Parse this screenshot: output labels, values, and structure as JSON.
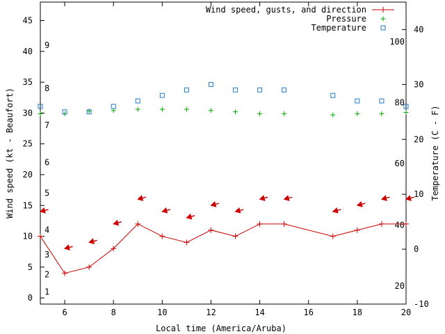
{
  "chart_data": {
    "type": "line",
    "xlabel": "Local time (America/Aruba)",
    "ylabel_left": "Wind speed (kt - Beaufort)",
    "ylabel_right": "Temperature (C - F)",
    "xlim": [
      5,
      20
    ],
    "ylim_left": [
      -1,
      48
    ],
    "ylim_right_c": [
      -10,
      45
    ],
    "x_ticks": [
      6,
      8,
      10,
      12,
      14,
      16,
      18,
      20
    ],
    "y_ticks_left": [
      0,
      5,
      10,
      15,
      20,
      25,
      30,
      35,
      40,
      45
    ],
    "y_ticks_right_c": [
      -10,
      0,
      10,
      20,
      30,
      40
    ],
    "beaufort_labels": [
      {
        "label": "1",
        "kt": 1
      },
      {
        "label": "2",
        "kt": 3.8
      },
      {
        "label": "3",
        "kt": 7
      },
      {
        "label": "4",
        "kt": 11
      },
      {
        "label": "5",
        "kt": 17
      },
      {
        "label": "6",
        "kt": 22
      },
      {
        "label": "7",
        "kt": 28
      },
      {
        "label": "8",
        "kt": 34
      },
      {
        "label": "9",
        "kt": 41
      }
    ],
    "fahrenheit_labels": [
      {
        "label": "20",
        "c": -6.7
      },
      {
        "label": "40",
        "c": 4.4
      },
      {
        "label": "60",
        "c": 15.6
      },
      {
        "label": "80",
        "c": 26.7
      },
      {
        "label": "100",
        "c": 37.8
      }
    ],
    "legend_position": "top-right",
    "series": [
      {
        "name": "Wind speed, gusts, and direction",
        "color": "#cc0000",
        "marker": "plus",
        "x": [
          5,
          6,
          7,
          8,
          9,
          10,
          11,
          12,
          13,
          14,
          15,
          17,
          18,
          19,
          20
        ],
        "values": [
          10,
          4,
          5,
          8,
          12,
          10,
          9,
          11,
          10,
          12,
          12,
          10,
          11,
          12,
          12
        ],
        "arrows_kt": [
          14,
          8,
          9,
          12,
          16,
          14,
          13,
          15,
          14,
          16,
          16,
          14,
          15,
          16,
          16
        ],
        "direction": "E"
      },
      {
        "name": "Pressure",
        "color": "#00aa00",
        "marker": "plus",
        "x": [
          5,
          6,
          7,
          8,
          9,
          10,
          11,
          12,
          13,
          14,
          15,
          17,
          18,
          19,
          20
        ],
        "values": [
          29.9,
          29.9,
          30.3,
          30.4,
          30.6,
          30.6,
          30.6,
          30.4,
          30.2,
          29.9,
          29.9,
          29.7,
          29.9,
          29.9,
          30.1
        ]
      },
      {
        "name": "Temperature",
        "color": "#1f7acc",
        "marker": "square",
        "x": [
          5,
          6,
          7,
          8,
          9,
          10,
          11,
          12,
          13,
          14,
          15,
          17,
          18,
          19,
          20
        ],
        "values_c": [
          26,
          25,
          25,
          26,
          27,
          28,
          29,
          30,
          29,
          29,
          29,
          28,
          27,
          27,
          26
        ]
      }
    ]
  }
}
